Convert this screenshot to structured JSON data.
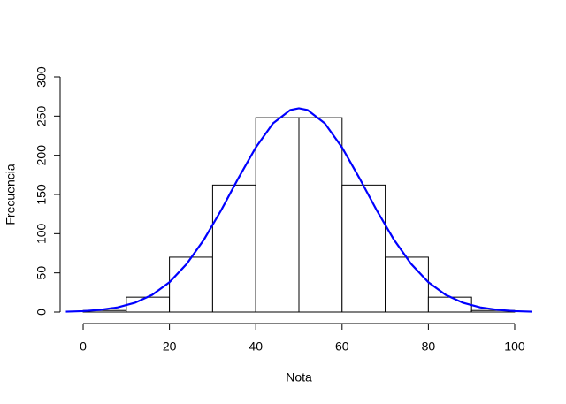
{
  "chart_data": {
    "type": "histogram",
    "xlabel": "Nota",
    "ylabel": "Frecuencia",
    "bins": [
      0,
      10,
      20,
      30,
      40,
      50,
      60,
      70,
      80,
      90,
      100
    ],
    "values": [
      2,
      19,
      70,
      162,
      248,
      248,
      162,
      70,
      19,
      2
    ],
    "bar_color": "#ffffff",
    "edge_color": "#000000",
    "curve": {
      "color": "#0000ff",
      "x": [
        -4,
        0,
        4,
        8,
        12,
        16,
        20,
        24,
        28,
        32,
        36,
        40,
        44,
        48,
        50,
        52,
        56,
        60,
        64,
        68,
        72,
        76,
        80,
        84,
        88,
        92,
        96,
        100,
        104
      ],
      "y": [
        0.5,
        1.2,
        2.8,
        6.0,
        11.9,
        22.0,
        38.0,
        61.4,
        92.5,
        130.1,
        171.1,
        210.0,
        240.8,
        257.8,
        260,
        257.8,
        240.8,
        210.0,
        171.1,
        130.1,
        92.5,
        61.4,
        38.0,
        22.0,
        11.9,
        6.0,
        2.8,
        1.2,
        0.5
      ]
    },
    "xlim": [
      -4,
      104
    ],
    "ylim": [
      0,
      300
    ],
    "xticks": [
      0,
      20,
      40,
      60,
      80,
      100
    ],
    "yticks": [
      0,
      50,
      100,
      150,
      200,
      250,
      300
    ]
  }
}
